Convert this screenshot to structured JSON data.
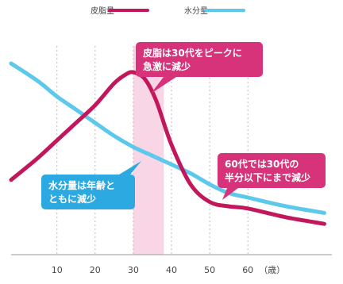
{
  "chart_data": {
    "type": "line",
    "title": "",
    "xlabel": "",
    "ylabel": "",
    "x_ticks": [
      10,
      20,
      30,
      40,
      50,
      60
    ],
    "x_unit_label": "（歳）",
    "xlim": [
      -2,
      82
    ],
    "ylim": [
      0,
      100
    ],
    "grid": "vertical dashed",
    "legend_position": "top",
    "highlight_band": [
      30,
      38
    ],
    "series": [
      {
        "name": "皮脂量",
        "color": "#c2185b",
        "x": [
          -2,
          5,
          10,
          15,
          20,
          25,
          28,
          30,
          33,
          36,
          40,
          45,
          50,
          55,
          60,
          70,
          80
        ],
        "y": [
          34,
          44,
          52,
          60,
          68,
          78,
          82,
          83,
          80,
          70,
          50,
          32,
          24,
          22,
          21,
          17,
          14
        ]
      },
      {
        "name": "水分量",
        "color": "#5bc8ec",
        "x": [
          -2,
          5,
          10,
          15,
          20,
          25,
          30,
          35,
          40,
          45,
          50,
          55,
          60,
          70,
          80
        ],
        "y": [
          87,
          79,
          72,
          66,
          60,
          54,
          49,
          45,
          41,
          37,
          32,
          28,
          26,
          22,
          19
        ]
      }
    ],
    "annotations": [
      {
        "lines": [
          "皮脂は30代をピークに",
          "急激に減少"
        ],
        "color": "#d6337a",
        "target": "皮脂量"
      },
      {
        "lines": [
          "水分量は年齢と",
          "ともに減少"
        ],
        "color": "#2da9e1",
        "target": "水分量"
      },
      {
        "lines": [
          "60代では30代の",
          "半分以下にまで減少"
        ],
        "color": "#d6337a",
        "target": "皮脂量"
      }
    ]
  }
}
